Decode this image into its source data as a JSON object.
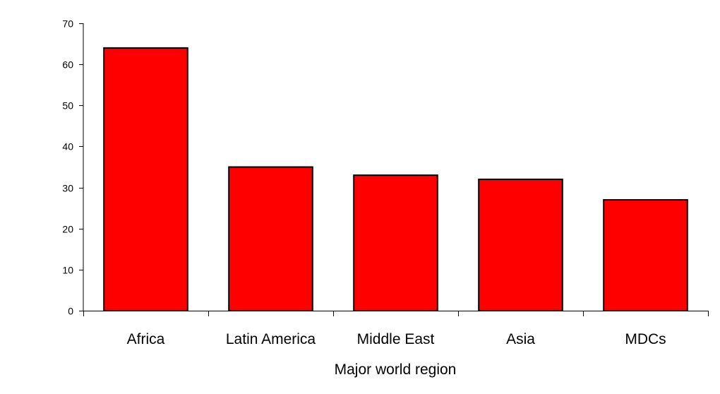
{
  "chart_data": {
    "type": "bar",
    "title": "",
    "xlabel": "Major world region",
    "ylabel": "",
    "categories": [
      "Africa",
      "Latin America",
      "Middle East",
      "Asia",
      "MDCs"
    ],
    "values": [
      64,
      35,
      33,
      32,
      27
    ],
    "ylim": [
      0,
      70
    ],
    "yticks": [
      0,
      10,
      20,
      30,
      40,
      50,
      60,
      70
    ],
    "grid": false,
    "legend": "none",
    "colors": {
      "bar_fill": "#ff0000",
      "bar_stroke": "#000000",
      "axis": "#000000"
    }
  }
}
